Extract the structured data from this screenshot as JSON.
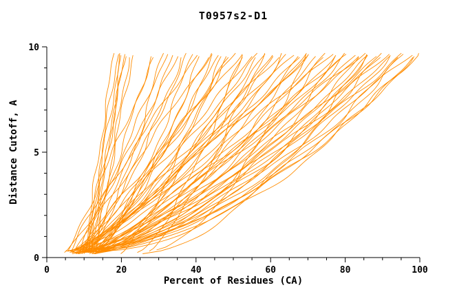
{
  "chart_data": {
    "type": "line",
    "title": "T0957s2-D1",
    "xlabel": "Percent of Residues (CA)",
    "ylabel": "Distance Cutoff, A",
    "xlim": [
      0,
      100
    ],
    "ylim": [
      0,
      10
    ],
    "x_major_ticks": [
      0,
      20,
      40,
      60,
      80,
      100
    ],
    "x_minor_step": 5,
    "y_major_ticks": [
      0,
      5,
      10
    ],
    "y_minor_step": 1,
    "grid": false,
    "legend": "none",
    "line_color": "#FF8C00",
    "axis_color": "#000000",
    "y_top_clip": 9.7,
    "note": "Approximately 76 overlapping unlabeled orange model curves (CASP-style cumulative distance plot). Each curve estimated as [x_at_bottom, x_at_top, shape_exponent]; x(y) = start + (end-start)*((y-y0)/(ytop-y0))^p.",
    "curve_format": [
      "x_start_at_y0",
      "x_end_at_ytop",
      "shape_exponent"
    ],
    "curves": [
      [
        10,
        18,
        1.0
      ],
      [
        11,
        19,
        1.1
      ],
      [
        12,
        20,
        0.95
      ],
      [
        12,
        21,
        1.05
      ],
      [
        13,
        22,
        1.0
      ],
      [
        11,
        20,
        1.15
      ],
      [
        10.5,
        21,
        0.9
      ],
      [
        13,
        23,
        1.0
      ],
      [
        20,
        47,
        0.8
      ],
      [
        24,
        52,
        0.7
      ],
      [
        27,
        58,
        0.75
      ],
      [
        30,
        70,
        0.65
      ],
      [
        26,
        86,
        0.6
      ],
      [
        9,
        28,
        0.85
      ],
      [
        6,
        29,
        1.0
      ],
      [
        11,
        31,
        0.7
      ],
      [
        8,
        32,
        0.95
      ],
      [
        5,
        34,
        0.8
      ],
      [
        12,
        35,
        1.1
      ],
      [
        7,
        36,
        0.65
      ],
      [
        10,
        38,
        0.9
      ],
      [
        13,
        39,
        0.75
      ],
      [
        6,
        40,
        1.05
      ],
      [
        9,
        41,
        0.6
      ],
      [
        12,
        43,
        0.85
      ],
      [
        7,
        44,
        1.0
      ],
      [
        10,
        45,
        0.7
      ],
      [
        14,
        46,
        0.9
      ],
      [
        8,
        48,
        0.6
      ],
      [
        11,
        49,
        0.95
      ],
      [
        6,
        50,
        0.8
      ],
      [
        9,
        52,
        1.05
      ],
      [
        13,
        53,
        0.65
      ],
      [
        7,
        55,
        0.9
      ],
      [
        10,
        56,
        0.75
      ],
      [
        14,
        57,
        1.0
      ],
      [
        8,
        58,
        0.6
      ],
      [
        11,
        60,
        0.85
      ],
      [
        6,
        61,
        0.7
      ],
      [
        9,
        62,
        0.95
      ],
      [
        12,
        63,
        0.62
      ],
      [
        7,
        65,
        0.8
      ],
      [
        10,
        66,
        1.0
      ],
      [
        14,
        67,
        0.7
      ],
      [
        8,
        68,
        0.9
      ],
      [
        11,
        69,
        0.6
      ],
      [
        6,
        70,
        0.78
      ],
      [
        9,
        71,
        0.95
      ],
      [
        13,
        72,
        0.68
      ],
      [
        7,
        74,
        0.85
      ],
      [
        10,
        75,
        0.6
      ],
      [
        14,
        76,
        0.9
      ],
      [
        8,
        77,
        0.72
      ],
      [
        11,
        78,
        0.55
      ],
      [
        6,
        79,
        0.8
      ],
      [
        9,
        80,
        0.65
      ],
      [
        12,
        81,
        0.9
      ],
      [
        7,
        82,
        0.58
      ],
      [
        10,
        83,
        0.75
      ],
      [
        13,
        84,
        0.62
      ],
      [
        8,
        85,
        0.85
      ],
      [
        11,
        86,
        0.55
      ],
      [
        6,
        87,
        0.7
      ],
      [
        9,
        88,
        0.6
      ],
      [
        12,
        89,
        0.8
      ],
      [
        7,
        90,
        0.55
      ],
      [
        10,
        91,
        0.68
      ],
      [
        13,
        92,
        0.58
      ],
      [
        8,
        93,
        0.75
      ],
      [
        11,
        94,
        0.52
      ],
      [
        6,
        95,
        0.65
      ],
      [
        9,
        96,
        0.55
      ],
      [
        12,
        97,
        0.7
      ],
      [
        7,
        98,
        0.5
      ],
      [
        10,
        99,
        0.6
      ],
      [
        8,
        100,
        0.55
      ]
    ]
  }
}
